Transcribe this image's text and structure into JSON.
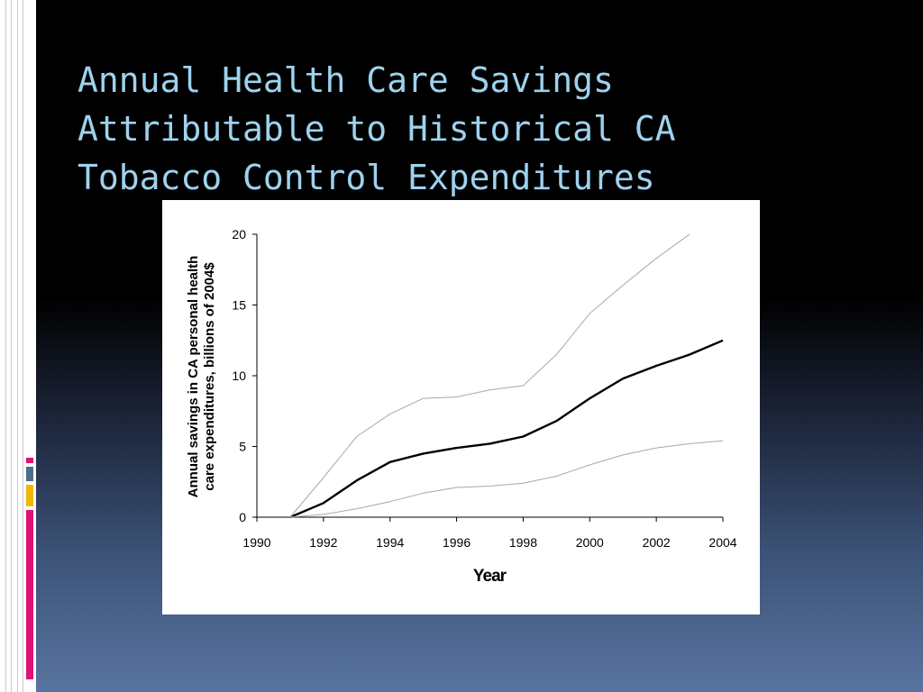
{
  "slide": {
    "title_lines": [
      "Annual Health Care Savings",
      "Attributable to Historical CA",
      "Tobacco Control Expenditures"
    ],
    "colors": {
      "title": "#9ed2ee",
      "accent_blue": "#4a6e8a",
      "accent_yellow": "#f2b800",
      "accent_pink": "#e0107a"
    }
  },
  "chart_data": {
    "type": "line",
    "title": "",
    "xlabel": "Year",
    "ylabel_lines": [
      "Annual savings in CA personal health",
      "care expenditures, billions of 2004$"
    ],
    "xlim": [
      1990,
      2004
    ],
    "ylim": [
      0,
      20
    ],
    "x_ticks": [
      1990,
      1992,
      1994,
      1996,
      1998,
      2000,
      2002,
      2004
    ],
    "y_ticks": [
      0,
      5,
      10,
      15,
      20
    ],
    "grid": false,
    "legend": "none",
    "series": [
      {
        "role": "estimate",
        "x": [
          1991,
          1992,
          1993,
          1994,
          1995,
          1996,
          1997,
          1998,
          1999,
          2000,
          2001,
          2002,
          2003,
          2004
        ],
        "y": [
          0,
          1.0,
          2.6,
          3.9,
          4.5,
          4.9,
          5.2,
          5.7,
          6.8,
          8.4,
          9.8,
          10.7,
          11.5,
          12.5
        ]
      },
      {
        "role": "upper",
        "x": [
          1991,
          1992,
          1993,
          1994,
          1995,
          1996,
          1997,
          1998,
          1999,
          2000,
          2001,
          2002,
          2003
        ],
        "y": [
          0,
          2.8,
          5.7,
          7.3,
          8.4,
          8.5,
          9.0,
          9.3,
          11.5,
          14.4,
          16.4,
          18.3,
          20.0
        ]
      },
      {
        "role": "lower",
        "x": [
          1991,
          1992,
          1993,
          1994,
          1995,
          1996,
          1997,
          1998,
          1999,
          2000,
          2001,
          2002,
          2003,
          2004
        ],
        "y": [
          0,
          0.2,
          0.6,
          1.1,
          1.7,
          2.1,
          2.2,
          2.4,
          2.9,
          3.7,
          4.4,
          4.9,
          5.2,
          5.4
        ]
      }
    ]
  }
}
